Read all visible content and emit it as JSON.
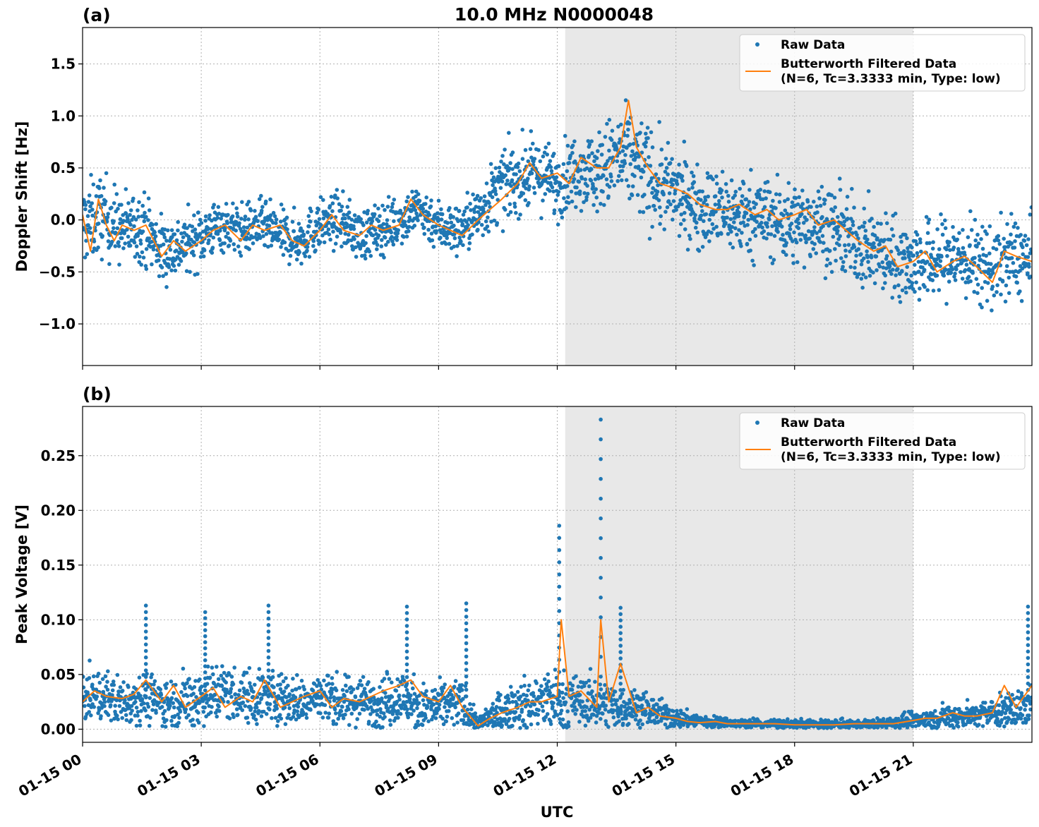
{
  "figure": {
    "title": "10.0 MHz N0000048",
    "xlabel": "UTC"
  },
  "chart_data": [
    {
      "type": "scatter",
      "panel_label": "(a)",
      "ylabel": "Doppler Shift [Hz]",
      "x_unit": "hours since 01-15 00 UTC",
      "xlim": [
        0,
        24
      ],
      "ylim": [
        -1.4,
        1.85
      ],
      "xticks": [
        0,
        3,
        6,
        9,
        12,
        15,
        18,
        21
      ],
      "xtick_labels": [
        "01-15 00",
        "01-15 03",
        "01-15 06",
        "01-15 09",
        "01-15 12",
        "01-15 15",
        "01-15 18",
        "01-15 21"
      ],
      "yticks": [
        -1.0,
        -0.5,
        0.0,
        0.5,
        1.0,
        1.5
      ],
      "ytick_labels": [
        "−1.0",
        "−0.5",
        "0.0",
        "0.5",
        "1.0",
        "1.5"
      ],
      "grid": true,
      "shaded_region": [
        12.2,
        21.0
      ],
      "legend": {
        "placement": "top-right",
        "entries": [
          {
            "label": "Raw Data",
            "marker": "dot",
            "color": "#1f77b4"
          },
          {
            "label": "Butterworth Filtered Data",
            "label2": "(N=6, Tc=3.3333 min, Type: low)",
            "marker": "line",
            "color": "#ff7f0e"
          }
        ]
      },
      "series": [
        {
          "name": "Raw Data",
          "color": "#1f77b4",
          "x": [
            0,
            0.5,
            1,
            1.5,
            2,
            2.5,
            3,
            3.5,
            4,
            4.5,
            5,
            5.5,
            6,
            6.5,
            7,
            7.5,
            8,
            8.5,
            9,
            9.5,
            10,
            10.5,
            11,
            11.5,
            12,
            12.5,
            13,
            13.5,
            14,
            14.5,
            15,
            15.5,
            16,
            16.5,
            17,
            17.5,
            18,
            18.5,
            19,
            19.5,
            20,
            20.5,
            21,
            21.5,
            22,
            22.5,
            23,
            23.5,
            24
          ],
          "center": [
            -0.05,
            0.05,
            -0.1,
            -0.05,
            -0.3,
            -0.25,
            -0.15,
            -0.05,
            -0.1,
            -0.05,
            -0.15,
            -0.2,
            -0.05,
            0.0,
            -0.15,
            -0.1,
            0.0,
            0.1,
            -0.05,
            -0.1,
            0.05,
            0.3,
            0.4,
            0.45,
            0.35,
            0.5,
            0.45,
            0.6,
            0.55,
            0.35,
            0.25,
            0.15,
            0.1,
            0.05,
            0.05,
            0.0,
            -0.05,
            0.0,
            -0.1,
            -0.2,
            -0.3,
            -0.35,
            -0.4,
            -0.4,
            -0.35,
            -0.4,
            -0.45,
            -0.35,
            -0.4
          ],
          "spread": [
            0.35,
            0.35,
            0.3,
            0.3,
            0.3,
            0.25,
            0.25,
            0.22,
            0.22,
            0.22,
            0.22,
            0.22,
            0.22,
            0.22,
            0.22,
            0.22,
            0.22,
            0.22,
            0.22,
            0.22,
            0.25,
            0.3,
            0.3,
            0.3,
            0.3,
            0.3,
            0.35,
            0.4,
            0.45,
            0.4,
            0.35,
            0.35,
            0.35,
            0.35,
            0.35,
            0.35,
            0.35,
            0.35,
            0.35,
            0.35,
            0.35,
            0.35,
            0.35,
            0.35,
            0.35,
            0.35,
            0.35,
            0.35,
            0.35
          ]
        },
        {
          "name": "Butterworth Filtered Data",
          "color": "#ff7f0e",
          "x": [
            0,
            0.2,
            0.4,
            0.6,
            0.8,
            1.0,
            1.3,
            1.6,
            2.0,
            2.3,
            2.6,
            3.0,
            3.3,
            3.6,
            4.0,
            4.3,
            4.6,
            5.0,
            5.3,
            5.6,
            6.0,
            6.3,
            6.6,
            7.0,
            7.3,
            7.6,
            8.0,
            8.3,
            8.6,
            9.0,
            9.3,
            9.6,
            10.0,
            10.3,
            10.6,
            11.0,
            11.3,
            11.6,
            12.0,
            12.3,
            12.6,
            13.0,
            13.3,
            13.6,
            13.8,
            14.0,
            14.3,
            14.6,
            15.0,
            15.3,
            15.6,
            16.0,
            16.3,
            16.6,
            17.0,
            17.3,
            17.6,
            18.0,
            18.3,
            18.6,
            19.0,
            19.3,
            19.6,
            20.0,
            20.3,
            20.6,
            21.0,
            21.3,
            21.6,
            22.0,
            22.3,
            22.6,
            23.0,
            23.3,
            23.6,
            24.0
          ],
          "y": [
            0.05,
            -0.3,
            0.2,
            -0.05,
            -0.2,
            -0.05,
            -0.1,
            -0.05,
            -0.35,
            -0.2,
            -0.3,
            -0.2,
            -0.1,
            -0.05,
            -0.2,
            -0.05,
            -0.1,
            -0.05,
            -0.2,
            -0.25,
            -0.1,
            0.05,
            -0.1,
            -0.15,
            -0.05,
            -0.1,
            -0.05,
            0.2,
            0.05,
            -0.05,
            -0.1,
            -0.15,
            0.0,
            0.1,
            0.2,
            0.35,
            0.55,
            0.4,
            0.45,
            0.35,
            0.6,
            0.5,
            0.5,
            0.7,
            1.15,
            0.7,
            0.5,
            0.35,
            0.3,
            0.25,
            0.15,
            0.1,
            0.1,
            0.15,
            0.05,
            0.1,
            0.0,
            0.05,
            0.1,
            -0.05,
            0.0,
            -0.1,
            -0.2,
            -0.3,
            -0.25,
            -0.45,
            -0.4,
            -0.3,
            -0.5,
            -0.4,
            -0.35,
            -0.45,
            -0.6,
            -0.3,
            -0.35,
            -0.4
          ]
        }
      ]
    },
    {
      "type": "scatter",
      "panel_label": "(b)",
      "ylabel": "Peak Voltage [V]",
      "x_unit": "hours since 01-15 00 UTC",
      "xlim": [
        0,
        24
      ],
      "ylim": [
        -0.012,
        0.295
      ],
      "xticks": [
        0,
        3,
        6,
        9,
        12,
        15,
        18,
        21
      ],
      "xtick_labels": [
        "01-15 00",
        "01-15 03",
        "01-15 06",
        "01-15 09",
        "01-15 12",
        "01-15 15",
        "01-15 18",
        "01-15 21"
      ],
      "yticks": [
        0.0,
        0.05,
        0.1,
        0.15,
        0.2,
        0.25
      ],
      "ytick_labels": [
        "0.00",
        "0.05",
        "0.10",
        "0.15",
        "0.20",
        "0.25"
      ],
      "grid": true,
      "shaded_region": [
        12.2,
        21.0
      ],
      "legend": {
        "placement": "top-right",
        "entries": [
          {
            "label": "Raw Data",
            "marker": "dot",
            "color": "#1f77b4"
          },
          {
            "label": "Butterworth Filtered Data",
            "label2": "(N=6, Tc=3.3333 min, Type: low)",
            "marker": "line",
            "color": "#ff7f0e"
          }
        ]
      },
      "series": [
        {
          "name": "Raw Data",
          "color": "#1f77b4",
          "x": [
            0,
            0.5,
            1,
            1.5,
            2,
            2.5,
            3,
            3.5,
            4,
            4.5,
            5,
            5.5,
            6,
            6.5,
            7,
            7.5,
            8,
            8.5,
            9,
            9.5,
            10,
            10.5,
            11,
            11.5,
            12,
            12.5,
            13,
            13.5,
            14,
            14.5,
            15,
            15.5,
            16,
            16.5,
            17,
            17.5,
            18,
            18.5,
            19,
            19.5,
            20,
            20.5,
            21,
            21.5,
            22,
            22.5,
            23,
            23.5,
            24
          ],
          "center": [
            0.03,
            0.03,
            0.025,
            0.03,
            0.025,
            0.025,
            0.03,
            0.035,
            0.03,
            0.03,
            0.03,
            0.025,
            0.03,
            0.025,
            0.025,
            0.025,
            0.03,
            0.02,
            0.02,
            0.025,
            0.005,
            0.015,
            0.02,
            0.025,
            0.025,
            0.025,
            0.025,
            0.02,
            0.02,
            0.015,
            0.01,
            0.008,
            0.006,
            0.005,
            0.005,
            0.005,
            0.004,
            0.004,
            0.004,
            0.004,
            0.005,
            0.006,
            0.008,
            0.01,
            0.012,
            0.012,
            0.015,
            0.018,
            0.02
          ],
          "spread": [
            0.02,
            0.02,
            0.02,
            0.02,
            0.02,
            0.02,
            0.025,
            0.025,
            0.02,
            0.025,
            0.02,
            0.02,
            0.02,
            0.02,
            0.02,
            0.02,
            0.025,
            0.02,
            0.02,
            0.02,
            0.006,
            0.015,
            0.02,
            0.025,
            0.025,
            0.02,
            0.02,
            0.02,
            0.015,
            0.012,
            0.008,
            0.006,
            0.005,
            0.004,
            0.004,
            0.004,
            0.004,
            0.004,
            0.004,
            0.004,
            0.004,
            0.005,
            0.006,
            0.008,
            0.01,
            0.01,
            0.012,
            0.015,
            0.018
          ],
          "spikes": [
            {
              "x": 1.6,
              "y": 0.113
            },
            {
              "x": 3.1,
              "y": 0.107
            },
            {
              "x": 4.7,
              "y": 0.113
            },
            {
              "x": 8.2,
              "y": 0.112
            },
            {
              "x": 9.7,
              "y": 0.115
            },
            {
              "x": 12.05,
              "y": 0.186
            },
            {
              "x": 13.1,
              "y": 0.283
            },
            {
              "x": 13.6,
              "y": 0.111
            },
            {
              "x": 23.9,
              "y": 0.112
            }
          ]
        },
        {
          "name": "Butterworth Filtered Data",
          "color": "#ff7f0e",
          "x": [
            0,
            0.3,
            0.6,
            1.0,
            1.3,
            1.6,
            2.0,
            2.3,
            2.6,
            3.0,
            3.3,
            3.6,
            4.0,
            4.3,
            4.6,
            5.0,
            5.3,
            5.6,
            6.0,
            6.3,
            6.6,
            7.0,
            7.3,
            7.6,
            8.0,
            8.3,
            8.6,
            9.0,
            9.3,
            9.6,
            10.0,
            10.3,
            10.6,
            11.0,
            11.3,
            11.6,
            12.0,
            12.1,
            12.3,
            12.6,
            13.0,
            13.1,
            13.3,
            13.6,
            14.0,
            14.3,
            14.6,
            15.0,
            15.3,
            15.6,
            16.0,
            16.3,
            16.6,
            17.0,
            17.5,
            18.0,
            18.5,
            19.0,
            19.5,
            20.0,
            20.5,
            21.0,
            21.3,
            21.6,
            22.0,
            22.3,
            22.6,
            23.0,
            23.3,
            23.6,
            24.0
          ],
          "y": [
            0.025,
            0.035,
            0.03,
            0.028,
            0.032,
            0.045,
            0.025,
            0.04,
            0.02,
            0.03,
            0.038,
            0.02,
            0.03,
            0.025,
            0.045,
            0.02,
            0.025,
            0.03,
            0.035,
            0.02,
            0.028,
            0.025,
            0.03,
            0.035,
            0.04,
            0.045,
            0.03,
            0.025,
            0.04,
            0.02,
            0.003,
            0.01,
            0.015,
            0.02,
            0.025,
            0.025,
            0.03,
            0.1,
            0.03,
            0.035,
            0.02,
            0.1,
            0.025,
            0.06,
            0.015,
            0.02,
            0.012,
            0.01,
            0.007,
            0.006,
            0.007,
            0.005,
            0.005,
            0.005,
            0.005,
            0.004,
            0.004,
            0.004,
            0.005,
            0.005,
            0.005,
            0.008,
            0.01,
            0.01,
            0.015,
            0.012,
            0.012,
            0.015,
            0.04,
            0.02,
            0.04
          ]
        }
      ]
    }
  ]
}
